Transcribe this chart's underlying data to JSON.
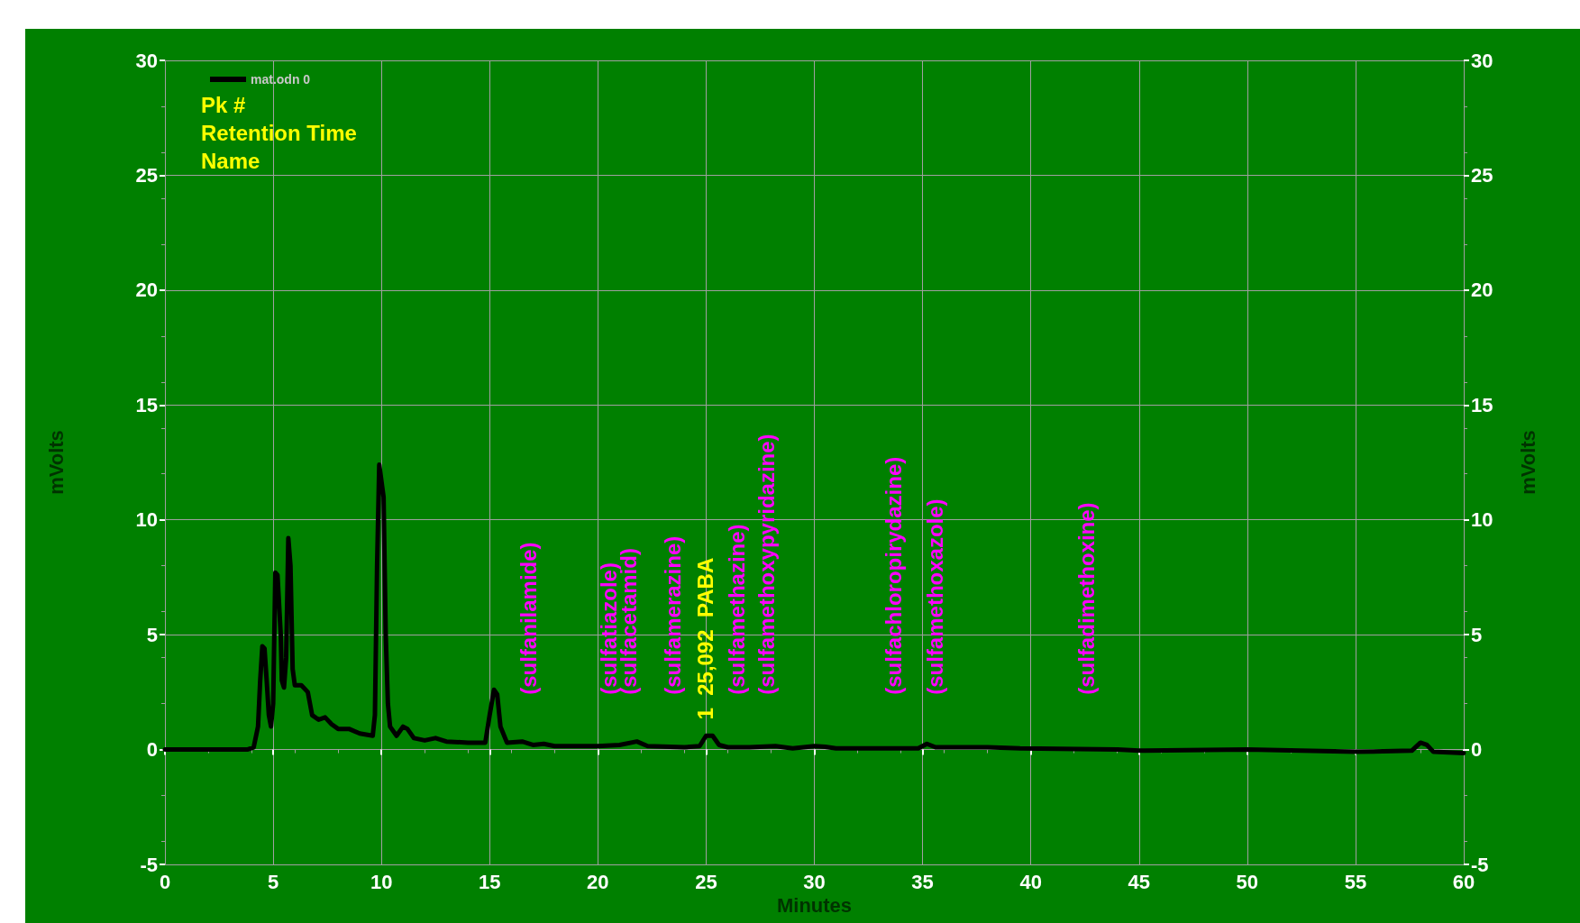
{
  "chart_data": {
    "type": "line",
    "xlabel": "Minutes",
    "ylabel": "mVolts",
    "y2label": "mVolts",
    "xlim": [
      0,
      60
    ],
    "xticks": [
      0,
      5,
      10,
      15,
      20,
      25,
      30,
      35,
      40,
      45,
      50,
      55,
      60
    ],
    "ylim": [
      -5,
      30
    ],
    "yticks": [
      -5,
      0,
      5,
      10,
      15,
      20,
      25,
      30
    ],
    "y2lim": [
      -5,
      30
    ],
    "y2ticks": [
      -5,
      0,
      5,
      10,
      15,
      20,
      25,
      30
    ],
    "grid": true,
    "legend": "top left",
    "series": [
      {
        "name": "mat.odn 0",
        "color": "#000000",
        "x": [
          0,
          3.8,
          4.1,
          4.3,
          4.4,
          4.5,
          4.6,
          4.7,
          4.8,
          4.9,
          5.0,
          5.1,
          5.2,
          5.35,
          5.4,
          5.5,
          5.6,
          5.7,
          5.8,
          5.9,
          6.0,
          6.3,
          6.6,
          6.8,
          7.1,
          7.4,
          7.7,
          8.0,
          8.5,
          9.0,
          9.6,
          9.7,
          9.8,
          9.9,
          10.1,
          10.2,
          10.3,
          10.4,
          10.7,
          11.0,
          11.2,
          11.5,
          12.0,
          12.5,
          13,
          14,
          14.8,
          15.0,
          15.2,
          15.35,
          15.5,
          15.8,
          16.5,
          17,
          17.5,
          18,
          20,
          21,
          21.8,
          22.3,
          24,
          24.7,
          25.0,
          25.3,
          25.6,
          26,
          27,
          28.2,
          29,
          30,
          30.5,
          31,
          34.8,
          35.2,
          35.6,
          38,
          39.5,
          44,
          45,
          50,
          55,
          57.6,
          58,
          58.3,
          58.6,
          60
        ],
        "values": [
          0,
          0,
          0.1,
          1,
          3,
          4.5,
          4.4,
          3,
          1.5,
          1,
          2,
          7.7,
          7.6,
          5,
          3,
          2.7,
          4,
          9.2,
          8,
          3.5,
          2.8,
          2.8,
          2.5,
          1.5,
          1.3,
          1.4,
          1.1,
          0.9,
          0.9,
          0.7,
          0.6,
          1.5,
          8,
          12.4,
          11,
          5,
          2,
          1,
          0.6,
          1.0,
          0.9,
          0.5,
          0.4,
          0.5,
          0.35,
          0.3,
          0.3,
          1.5,
          2.6,
          2.4,
          1,
          0.3,
          0.35,
          0.2,
          0.25,
          0.15,
          0.15,
          0.2,
          0.35,
          0.15,
          0.1,
          0.15,
          0.6,
          0.6,
          0.2,
          0.1,
          0.1,
          0.15,
          0.05,
          0.15,
          0.12,
          0.05,
          0.05,
          0.25,
          0.1,
          0.1,
          0.05,
          0,
          -0.05,
          0,
          -0.1,
          -0.05,
          0.3,
          0.2,
          -0.1,
          -0.15
        ]
      }
    ],
    "annotations": [
      "Pk #",
      "Retention Time",
      "Name",
      "(sulfanilamide)",
      "(sulfatiazole)",
      "(sulfacetamid)",
      "(sulfamerazine)",
      "1  25,092  PABA",
      "(sulfamethazine)",
      "(sulfamethoxypyridazine)",
      "(sulfachloropirydazine)",
      "(sulfamethoxazole)",
      "(sulfadimethoxine)"
    ]
  }
}
